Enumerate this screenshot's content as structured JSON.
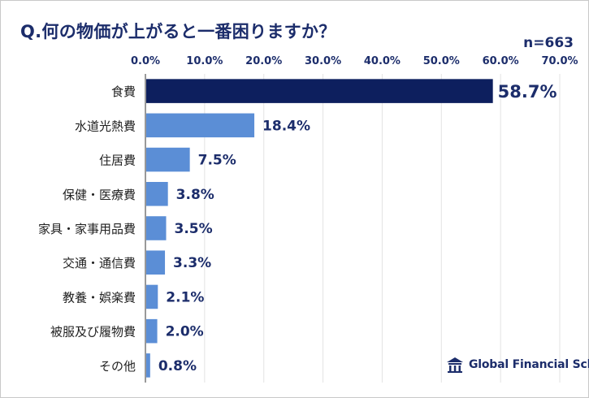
{
  "title": "Q.何の物価が上がると一番困りますか？",
  "n_label": "n=663",
  "brand": {
    "name": "Global Financial School",
    "icon": "school-building-icon"
  },
  "colors": {
    "highlight": "#0d1f5e",
    "bar": "#5b8ed6",
    "label": "#1c2d6b",
    "grid": "#e3e3e3",
    "axis": "#333333"
  },
  "chart_data": {
    "type": "bar",
    "orientation": "horizontal",
    "categories": [
      "食費",
      "水道光熱費",
      "住居費",
      "保健・医療費",
      "家具・家事用品費",
      "交通・通信費",
      "教養・娯楽費",
      "被服及び履物費",
      "その他"
    ],
    "values": [
      58.7,
      18.4,
      7.5,
      3.8,
      3.5,
      3.3,
      2.1,
      2.0,
      0.8
    ],
    "value_labels": [
      "58.7%",
      "18.4%",
      "7.5%",
      "3.8%",
      "3.5%",
      "3.3%",
      "2.1%",
      "2.0%",
      "0.8%"
    ],
    "xlim": [
      0,
      70
    ],
    "ticks": [
      "0.0%",
      "10.0%",
      "20.0%",
      "30.0%",
      "40.0%",
      "50.0%",
      "60.0%",
      "70.0%"
    ],
    "tick_values": [
      0,
      10,
      20,
      30,
      40,
      50,
      60,
      70
    ],
    "axis_position": "top",
    "grid": true,
    "highlight_category": "食費"
  }
}
